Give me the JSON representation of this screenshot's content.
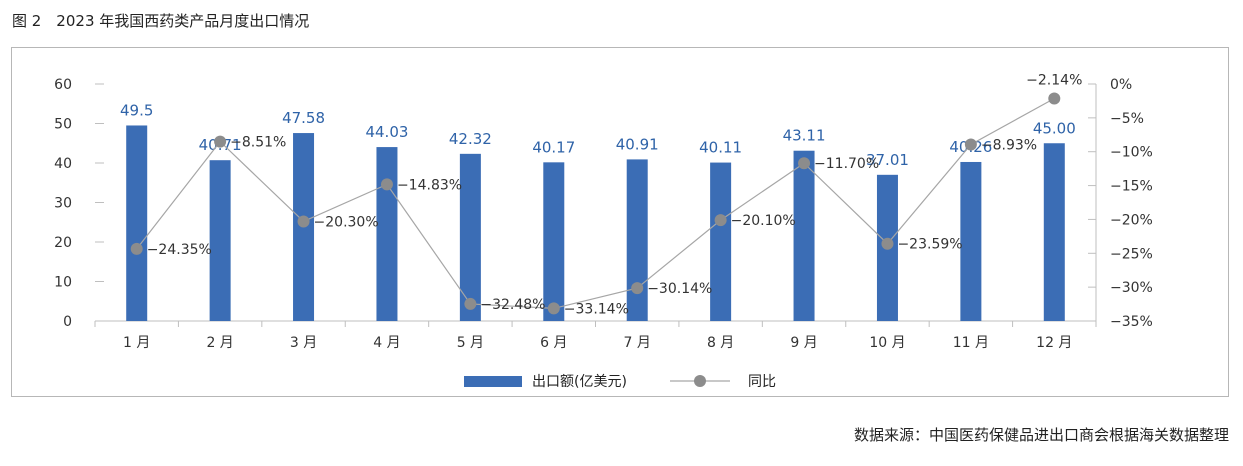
{
  "figure": {
    "caption": "图 2　2023 年我国西药类产品月度出口情况",
    "source": "数据来源：中国医药保健品进出口商会根据海关数据整理"
  },
  "colors": {
    "bar": "#3b6db5",
    "line": "#a6a6a6",
    "marker": "#8c8c8c"
  },
  "chart_data": {
    "type": "bar",
    "title": "",
    "categories": [
      "1 月",
      "2 月",
      "3 月",
      "4 月",
      "5 月",
      "6 月",
      "7 月",
      "8 月",
      "9 月",
      "10 月",
      "11 月",
      "12 月"
    ],
    "ylim": [
      0,
      60
    ],
    "y2lim": [
      -35,
      0
    ],
    "yticks": [
      "0",
      "10",
      "20",
      "30",
      "40",
      "50",
      "60"
    ],
    "y2ticks": [
      "0%",
      "−5%",
      "−10%",
      "−15%",
      "−20%",
      "−25%",
      "−30%",
      "−35%"
    ],
    "grid": false,
    "legend_position": "bottom",
    "series": [
      {
        "name": "出口额(亿美元)",
        "type": "bar",
        "axis": "left",
        "values": [
          49.5,
          40.71,
          47.58,
          44.03,
          42.32,
          40.17,
          40.91,
          40.11,
          43.11,
          37.01,
          40.26,
          45.0
        ],
        "labels": [
          "49.5",
          "40.71",
          "47.58",
          "44.03",
          "42.32",
          "40.17",
          "40.91",
          "40.11",
          "43.11",
          "37.01",
          "40.26",
          "45.00"
        ]
      },
      {
        "name": "同比",
        "type": "line",
        "axis": "right",
        "values": [
          -24.35,
          -8.51,
          -20.3,
          -14.83,
          -32.48,
          -33.14,
          -30.14,
          -20.1,
          -11.7,
          -23.59,
          -8.93,
          -2.14
        ],
        "labels": [
          "−24.35%",
          "−8.51%",
          "−20.30%",
          "−14.83%",
          "−32.48%",
          "−33.14%",
          "−30.14%",
          "−20.10%",
          "−11.70%",
          "−23.59%",
          "−8.93%",
          "−2.14%"
        ]
      }
    ]
  }
}
